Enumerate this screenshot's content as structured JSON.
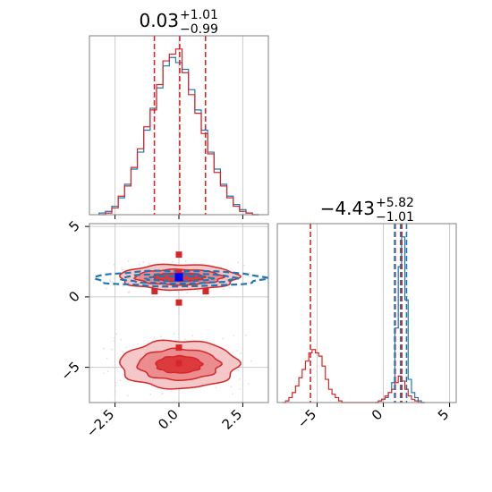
{
  "chart_data": {
    "type": "corner",
    "parameters": 2,
    "colors": {
      "blue": "#1f77b4",
      "red": "#d62728",
      "grid": "#cccccc",
      "marker": "#0000ff"
    },
    "grid": true,
    "panels": {
      "hist_x": {
        "type": "histogram",
        "title": {
          "median": "0.03",
          "plus": "+1.01",
          "minus": "−0.99"
        },
        "xlim": [
          -3.5,
          3.5
        ],
        "xticks": [
          -2.5,
          0.0,
          2.5
        ],
        "quantile_lines": [
          -0.96,
          0.03,
          1.04
        ],
        "series": [
          {
            "color": "blue",
            "centers": [
              -3.0,
              -2.75,
              -2.5,
              -2.25,
              -2.0,
              -1.75,
              -1.5,
              -1.25,
              -1.0,
              -0.75,
              -0.5,
              -0.25,
              0.0,
              0.25,
              0.5,
              0.75,
              1.0,
              1.25,
              1.5,
              1.75,
              2.0,
              2.25,
              2.5,
              2.75,
              3.0
            ],
            "counts": [
              0.01,
              0.02,
              0.05,
              0.1,
              0.18,
              0.27,
              0.37,
              0.5,
              0.63,
              0.75,
              0.88,
              0.93,
              0.9,
              0.86,
              0.74,
              0.62,
              0.5,
              0.37,
              0.27,
              0.18,
              0.11,
              0.06,
              0.03,
              0.01,
              0.0
            ]
          },
          {
            "color": "red",
            "centers": [
              -3.0,
              -2.75,
              -2.5,
              -2.25,
              -2.0,
              -1.75,
              -1.5,
              -1.25,
              -1.0,
              -0.75,
              -0.5,
              -0.25,
              0.0,
              0.25,
              0.5,
              0.75,
              1.0,
              1.25,
              1.5,
              1.75,
              2.0,
              2.25,
              2.5,
              2.75,
              3.0
            ],
            "counts": [
              0.0,
              0.01,
              0.04,
              0.11,
              0.17,
              0.28,
              0.39,
              0.52,
              0.62,
              0.77,
              0.91,
              0.95,
              0.98,
              0.84,
              0.71,
              0.6,
              0.48,
              0.36,
              0.25,
              0.17,
              0.1,
              0.05,
              0.02,
              0.01,
              0.0
            ]
          }
        ]
      },
      "hist_y": {
        "type": "histogram",
        "title": {
          "median": "−4.43",
          "plus": "+5.82",
          "minus": "−1.01"
        },
        "xlim": [
          -8,
          5.5
        ],
        "xticks": [
          -5,
          0,
          5
        ],
        "quantile_lines": [
          {
            "color": "red",
            "values": [
              -5.5,
              0.9,
              1.4
            ]
          },
          {
            "color": "blue",
            "values": [
              0.85,
              1.3,
              1.75
            ]
          }
        ],
        "series": [
          {
            "color": "blue",
            "centers": [
              -0.5,
              -0.25,
              0.0,
              0.25,
              0.5,
              0.75,
              1.0,
              1.25,
              1.5,
              1.75,
              2.0,
              2.25,
              2.5,
              2.75,
              3.0
            ],
            "counts": [
              0.0,
              0.01,
              0.02,
              0.03,
              0.06,
              0.12,
              0.45,
              0.82,
              1.0,
              0.62,
              0.14,
              0.06,
              0.03,
              0.01,
              0.0
            ]
          },
          {
            "color": "red",
            "centers": [
              -7.5,
              -7.25,
              -7.0,
              -6.75,
              -6.5,
              -6.25,
              -6.0,
              -5.75,
              -5.5,
              -5.25,
              -5.0,
              -4.75,
              -4.5,
              -4.25,
              -4.0,
              -3.75,
              -3.5,
              -3.25,
              -3.0,
              -2.75,
              -0.5,
              -0.25,
              0.0,
              0.25,
              0.5,
              0.75,
              1.0,
              1.25,
              1.5,
              1.75,
              2.0,
              2.25,
              2.5,
              2.75,
              3.0
            ],
            "counts": [
              0.0,
              0.01,
              0.03,
              0.06,
              0.1,
              0.15,
              0.2,
              0.25,
              0.3,
              0.32,
              0.3,
              0.28,
              0.22,
              0.14,
              0.08,
              0.05,
              0.03,
              0.01,
              0.0,
              0.0,
              0.0,
              0.01,
              0.02,
              0.04,
              0.06,
              0.08,
              0.12,
              0.16,
              0.13,
              0.08,
              0.04,
              0.02,
              0.01,
              0.0,
              0.0
            ]
          }
        ]
      },
      "scatter_xy": {
        "type": "contour",
        "xlim": [
          -3.5,
          3.5
        ],
        "ylim": [
          -7.5,
          5.2
        ],
        "xticks": [
          -2.5,
          0.0,
          2.5
        ],
        "yticks": [
          -5,
          0,
          5
        ],
        "blobs": [
          {
            "color": "red",
            "center": [
              0.0,
              1.4
            ],
            "levels": [
              [
                2.3,
                0.9
              ],
              [
                1.7,
                0.55
              ],
              [
                1.0,
                0.3
              ]
            ]
          },
          {
            "color": "red",
            "center": [
              0.0,
              -4.8
            ],
            "levels": [
              [
                2.3,
                1.7
              ],
              [
                1.6,
                1.1
              ],
              [
                0.9,
                0.6
              ]
            ]
          },
          {
            "color": "blue",
            "center": [
              0.0,
              1.3
            ],
            "levels": [
              [
                3.3,
                0.55
              ],
              [
                2.2,
                0.35
              ],
              [
                1.3,
                0.18
              ]
            ]
          }
        ],
        "markers": [
          {
            "color": "red",
            "points": [
              [
                0.0,
                3.0
              ],
              [
                0.0,
                1.7
              ],
              [
                0.0,
                1.5
              ],
              [
                -0.95,
                0.4
              ],
              [
                0.0,
                -0.4
              ],
              [
                1.05,
                0.4
              ],
              [
                0.0,
                -3.6
              ],
              [
                0.0,
                -4.7
              ]
            ]
          },
          {
            "color": "marker",
            "points": [
              [
                0.0,
                1.4
              ]
            ]
          }
        ]
      }
    }
  }
}
